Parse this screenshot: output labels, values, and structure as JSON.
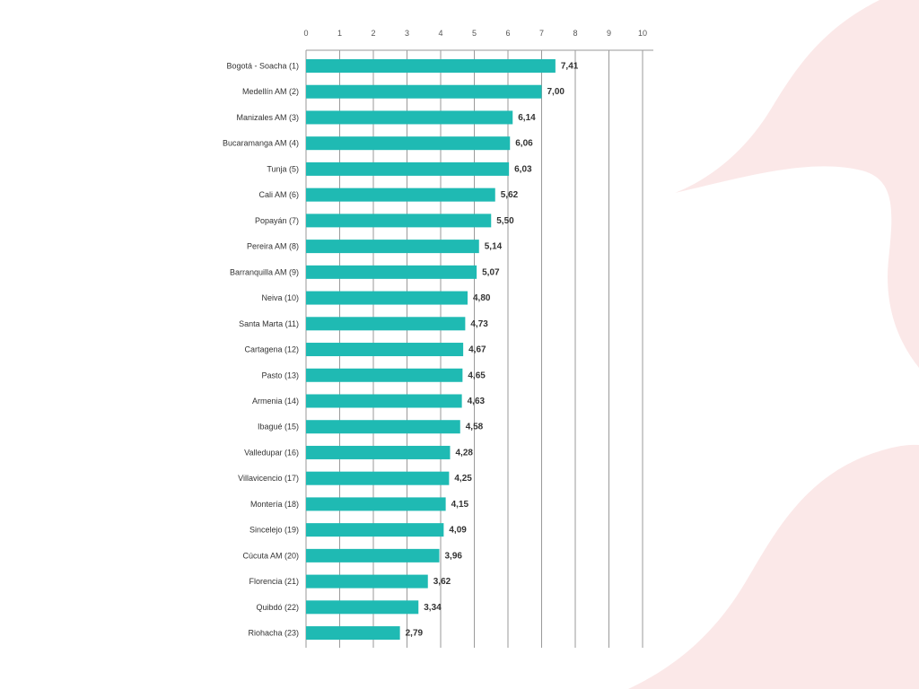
{
  "colors": {
    "bar": "#1fbab3",
    "grid": "#9a9a9a",
    "decor": "#fbe8e8"
  },
  "chart_data": {
    "type": "bar",
    "orientation": "horizontal",
    "title": "",
    "xlabel": "",
    "ylabel": "",
    "xlim": [
      0,
      10
    ],
    "x_ticks": [
      "0",
      "1",
      "2",
      "3",
      "4",
      "5",
      "6",
      "7",
      "8",
      "9",
      "10"
    ],
    "axis_position": "top",
    "grid": true,
    "categories": [
      "Bogotá - Soacha (1)",
      "Medellín AM (2)",
      "Manizales AM (3)",
      "Bucaramanga AM (4)",
      "Tunja (5)",
      "Cali AM (6)",
      "Popayán (7)",
      "Pereira AM (8)",
      "Barranquilla AM (9)",
      "Neiva (10)",
      "Santa Marta (11)",
      "Cartagena (12)",
      "Pasto (13)",
      "Armenia (14)",
      "Ibagué (15)",
      "Valledupar (16)",
      "Villavicencio (17)",
      "Montería (18)",
      "Sincelejo (19)",
      "Cúcuta AM (20)",
      "Florencia (21)",
      "Quibdó (22)",
      "Riohacha (23)"
    ],
    "values": [
      7.41,
      7.0,
      6.14,
      6.06,
      6.03,
      5.62,
      5.5,
      5.14,
      5.07,
      4.8,
      4.73,
      4.67,
      4.65,
      4.63,
      4.58,
      4.28,
      4.25,
      4.15,
      4.09,
      3.96,
      3.62,
      3.34,
      2.79
    ],
    "value_labels": [
      "7,41",
      "7,00",
      "6,14",
      "6,06",
      "6,03",
      "5,62",
      "5,50",
      "5,14",
      "5,07",
      "4,80",
      "4,73",
      "4,67",
      "4,65",
      "4,63",
      "4,58",
      "4,28",
      "4,25",
      "4,15",
      "4,09",
      "3,96",
      "3,62",
      "3,34",
      "2,79"
    ]
  }
}
